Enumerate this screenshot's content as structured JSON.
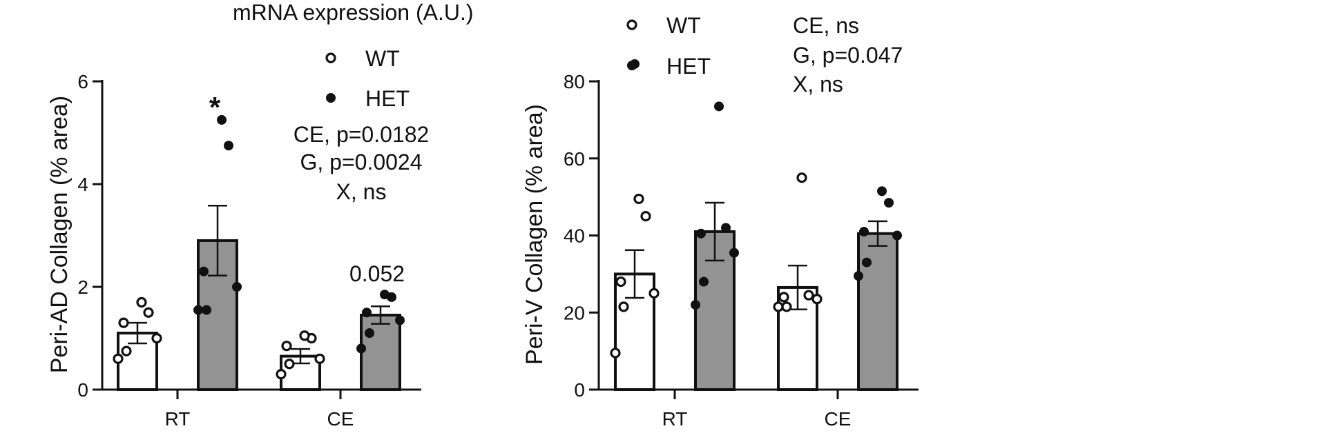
{
  "chart_data": [
    {
      "type": "bar",
      "ylabel": "Peri-AD Collagen (% area)",
      "overlap_text": "mRNA expression (A.U.)",
      "categories": [
        "RT",
        "CE"
      ],
      "ylim": [
        0,
        6
      ],
      "yticks": [
        "0",
        "2",
        "4",
        "6"
      ],
      "series": [
        {
          "name": "WT",
          "values": [
            1.1,
            0.65
          ],
          "sem": [
            0.2,
            0.14
          ],
          "points": [
            [
              0.6,
              0.75,
              1.0,
              1.3,
              1.5,
              1.7
            ],
            [
              0.3,
              0.5,
              0.6,
              0.85,
              1.0,
              1.05
            ]
          ],
          "color": "#ffffff"
        },
        {
          "name": "HET",
          "values": [
            2.9,
            1.45
          ],
          "sem": [
            0.68,
            0.17
          ],
          "points": [
            [
              1.55,
              1.55,
              2.0,
              2.3,
              4.75,
              5.25
            ],
            [
              0.8,
              1.1,
              1.35,
              1.5,
              1.8,
              1.85
            ]
          ],
          "color": "#939393"
        }
      ],
      "annotations": [
        "*",
        "0.052"
      ],
      "stats": [
        "CE, p=0.0182",
        "G, p=0.0024",
        "X, ns"
      ],
      "legend": [
        "WT",
        "HET"
      ],
      "grid": false,
      "legend_placement": "top-right"
    },
    {
      "type": "bar",
      "ylabel": "Peri-V Collagen (% area)",
      "categories": [
        "RT",
        "CE"
      ],
      "ylim": [
        0,
        80
      ],
      "yticks": [
        "0",
        "20",
        "40",
        "60",
        "80"
      ],
      "series": [
        {
          "name": "WT",
          "values": [
            30,
            26.5
          ],
          "sem": [
            6.2,
            5.7
          ],
          "points": [
            [
              9.5,
              21.5,
              25,
              28,
              45,
              49.5
            ],
            [
              21.5,
              21.5,
              23.5,
              24,
              24.5,
              55
            ]
          ],
          "color": "#ffffff"
        },
        {
          "name": "HET",
          "values": [
            41,
            40.5
          ],
          "sem": [
            7.5,
            3.2
          ],
          "points": [
            [
              22,
              28,
              35.5,
              40.5,
              42,
              73.5
            ],
            [
              29.5,
              33,
              40,
              41,
              48.5,
              51.5
            ]
          ],
          "color": "#939393"
        }
      ],
      "extra_points": [
        {
          "series": "WT",
          "y": 84.5,
          "note": "outlier above axis"
        }
      ],
      "stats": [
        "CE, ns",
        "G, p=0.047",
        "X, ns"
      ],
      "legend": [
        "WT",
        "HET"
      ],
      "grid": false,
      "legend_placement": "top"
    }
  ]
}
